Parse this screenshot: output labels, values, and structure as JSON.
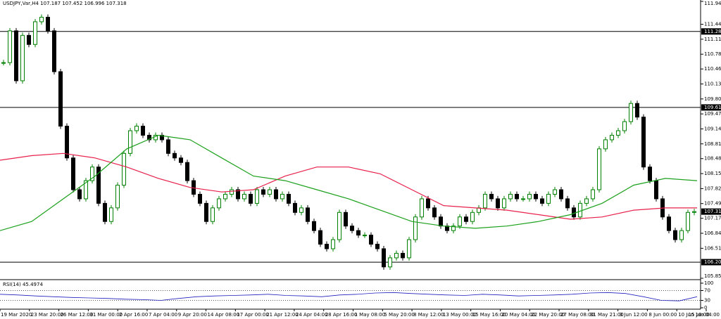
{
  "chart_data": {
    "type": "candlestick",
    "title": "USDJPY,Var,H4  107.187 107.452 106.996 107.318",
    "values": [
      110.6,
      111.3,
      110.2,
      111.2,
      111.0,
      111.5,
      111.6,
      111.3,
      110.4,
      109.2,
      108.5,
      107.8,
      107.6,
      108.0,
      108.3,
      107.5,
      107.1,
      107.4,
      107.9,
      108.6,
      109.1,
      109.2,
      109.0,
      108.9,
      109.0,
      108.9,
      108.6,
      108.5,
      108.4,
      108.0,
      107.7,
      107.5,
      107.1,
      107.4,
      107.6,
      107.7,
      107.8,
      107.6,
      107.7,
      107.5,
      107.8,
      107.7,
      107.8,
      107.6,
      107.7,
      107.5,
      107.3,
      107.4,
      107.1,
      106.9,
      106.6,
      106.5,
      106.7,
      107.3,
      107.0,
      106.9,
      106.8,
      106.8,
      106.6,
      106.5,
      106.1,
      106.3,
      106.4,
      106.3,
      106.7,
      107.2,
      107.6,
      107.4,
      107.2,
      107.0,
      106.9,
      107.0,
      107.2,
      107.1,
      107.3,
      107.4,
      107.7,
      107.6,
      107.4,
      107.6,
      107.7,
      107.6,
      107.6,
      107.7,
      107.6,
      107.5,
      107.7,
      107.8,
      107.6,
      107.4,
      107.2,
      107.5,
      107.6,
      107.8,
      108.7,
      108.9,
      109.0,
      109.1,
      109.3,
      109.7,
      109.4,
      108.3,
      108.0,
      107.6,
      107.2,
      106.9,
      106.7,
      106.9,
      107.3,
      107.318
    ],
    "series": [
      {
        "color": "#e8204a",
        "values": [
          108.45,
          108.55,
          108.6,
          108.5,
          108.3,
          108.05,
          107.85,
          107.75,
          107.8,
          108.1,
          108.3,
          108.3,
          108.15,
          107.8,
          107.45,
          107.4,
          107.35,
          107.25,
          107.15,
          107.2,
          107.35,
          107.4,
          107.4
        ]
      },
      {
        "color": "#1aa01a",
        "values": [
          106.9,
          107.1,
          107.6,
          108.1,
          108.7,
          109.0,
          108.9,
          108.5,
          108.1,
          108.0,
          107.8,
          107.6,
          107.35,
          107.1,
          107.0,
          106.95,
          107.0,
          107.1,
          107.25,
          107.5,
          107.9,
          108.05,
          108.0
        ]
      }
    ],
    "up_color": "#008000",
    "down_color": "#000000",
    "ylim": [
      105.85,
      111.948
    ],
    "yticks": [
      {
        "value": 111.948,
        "label": "111.948"
      },
      111.445,
      111.115,
      110.785,
      {
        "value": 110.46,
        "label": "110.460"
      },
      110.13,
      {
        "value": 109.8,
        "label": "109.800"
      },
      {
        "value": 109.47,
        "label": "109.470"
      },
      {
        "value": 109.14,
        "label": "109.140"
      },
      {
        "value": 108.81,
        "label": "108.810"
      },
      108.485,
      108.155,
      107.825,
      107.495,
      {
        "value": 107.17,
        "label": "107.170"
      },
      {
        "value": 106.84,
        "label": "106.840"
      },
      {
        "value": 106.51,
        "label": "106.510"
      },
      {
        "value": 105.85,
        "label": "105.850"
      }
    ],
    "levels": [
      111.286,
      109.612,
      106.205
    ],
    "xtick_labels": [
      "19 Mar 2020",
      "23 Mar 20:00",
      "26 Mar 12:00",
      "31 Mar 00:00",
      "2 Apr 16:00",
      "7 Apr 04:00",
      "9 Apr 20:00",
      "14 Apr 08:00",
      "17 Apr 00:00",
      "21 Apr 12:00",
      "24 Apr 04:00",
      "28 Apr 16:00",
      "1 May 08:00",
      "5 May 20:00",
      "8 May 12:00",
      "13 May 00:00",
      "15 May 16:00",
      "20 May 04:00",
      "22 May 20:00",
      "27 May 08:00",
      "31 May 21:00",
      "3 Jun 12:00",
      "8 Jun 00:00",
      "10 Jun 16:00",
      "15 Jun 04:00"
    ],
    "rsi": {
      "label": "RSI(14) 45.4974",
      "color": "#2020c0",
      "values": [
        55,
        52,
        48,
        45,
        42,
        40,
        38,
        35,
        33,
        30,
        38,
        45,
        48,
        50,
        52,
        55,
        50,
        48,
        45,
        52,
        55,
        60,
        62,
        58,
        55,
        52,
        50,
        55,
        52,
        48,
        50,
        52,
        55,
        60,
        62,
        58,
        45,
        30,
        28,
        45
      ],
      "ylim": [
        0,
        100
      ],
      "yticks": [
        100,
        70,
        30,
        0
      ]
    }
  }
}
